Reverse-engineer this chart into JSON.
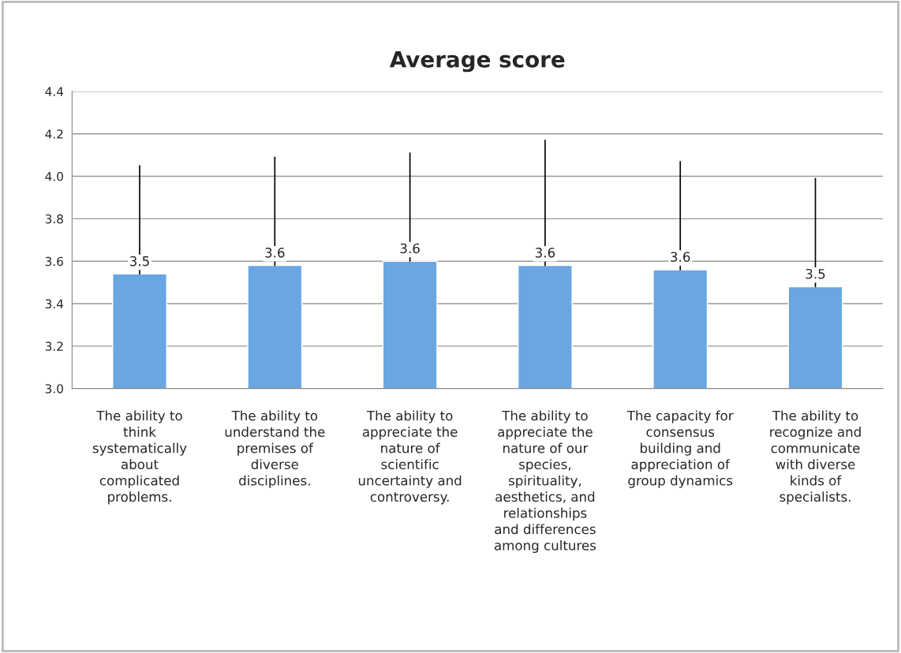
{
  "chart_data": {
    "type": "bar",
    "title": "Average score",
    "categories": [
      "The ability to\nthink\nsystematically\nabout\ncomplicated\nproblems.",
      "The ability to\nunderstand the\npremises of\ndiverse\ndisciplines.",
      "The ability to\nappreciate the\nnature of\nscientific\nuncertainty and\ncontroversy.",
      "The ability to\nappreciate the\nnature of our\nspecies,\nspirituality,\naesthetics, and\nrelationships\nand differences\namong cultures",
      "The capacity for\nconsensus\nbuilding and\nappreciation of\ngroup dynamics",
      "The ability to\nrecognize and\ncommunicate\nwith diverse\nkinds of\nspecialists."
    ],
    "values": [
      3.54,
      3.58,
      3.6,
      3.58,
      3.56,
      3.48
    ],
    "errors": [
      [
        3.54,
        4.05
      ],
      [
        3.58,
        4.09
      ],
      [
        3.6,
        4.11
      ],
      [
        3.58,
        4.17
      ],
      [
        3.56,
        4.07
      ],
      [
        3.48,
        3.99
      ]
    ],
    "value_labels": [
      "3.5",
      "3.6",
      "3.6",
      "3.6",
      "3.6",
      "3.5"
    ],
    "color": "#6aa6e2",
    "ylim": [
      3.0,
      4.4
    ],
    "yticks": [
      {
        "value": 3.0,
        "label": "3.0"
      },
      {
        "value": 3.2,
        "label": "3.2"
      },
      {
        "value": 3.4,
        "label": "3.4"
      },
      {
        "value": 3.6,
        "label": "3.6"
      },
      {
        "value": 3.8,
        "label": "3.8"
      },
      {
        "value": 4.0,
        "label": "4.0"
      },
      {
        "value": 4.2,
        "label": "4.2"
      },
      {
        "value": 4.4,
        "label": "4.4"
      }
    ],
    "grid": "y"
  }
}
